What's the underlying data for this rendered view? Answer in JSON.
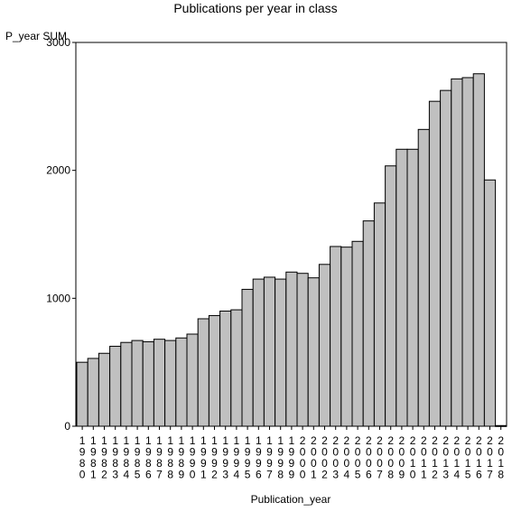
{
  "chart_data": {
    "type": "bar",
    "title": "Publications per year in class",
    "ylabel": "P_year SUM",
    "xlabel": "Publication_year",
    "ylim": [
      0,
      3000
    ],
    "yticks": [
      0,
      1000,
      2000,
      3000
    ],
    "grid": false,
    "categories": [
      "1980",
      "1981",
      "1982",
      "1983",
      "1984",
      "1985",
      "1986",
      "1987",
      "1988",
      "1989",
      "1990",
      "1991",
      "1992",
      "1993",
      "1994",
      "1995",
      "1996",
      "1997",
      "1998",
      "1999",
      "2000",
      "2001",
      "2002",
      "2003",
      "2004",
      "2005",
      "2006",
      "2007",
      "2008",
      "2009",
      "2010",
      "2011",
      "2012",
      "2013",
      "2014",
      "2015",
      "2016",
      "2017",
      "2018"
    ],
    "values": [
      500,
      530,
      570,
      625,
      655,
      670,
      660,
      680,
      670,
      690,
      720,
      840,
      865,
      900,
      910,
      1070,
      1150,
      1165,
      1150,
      1205,
      1195,
      1160,
      1265,
      1405,
      1400,
      1445,
      1605,
      1745,
      2035,
      2165,
      2165,
      2320,
      2540,
      2625,
      2715,
      2725,
      2755,
      1925,
      5
    ],
    "colors": {
      "bar_fill": "#c0c0c0",
      "bar_stroke": "#000000"
    }
  }
}
